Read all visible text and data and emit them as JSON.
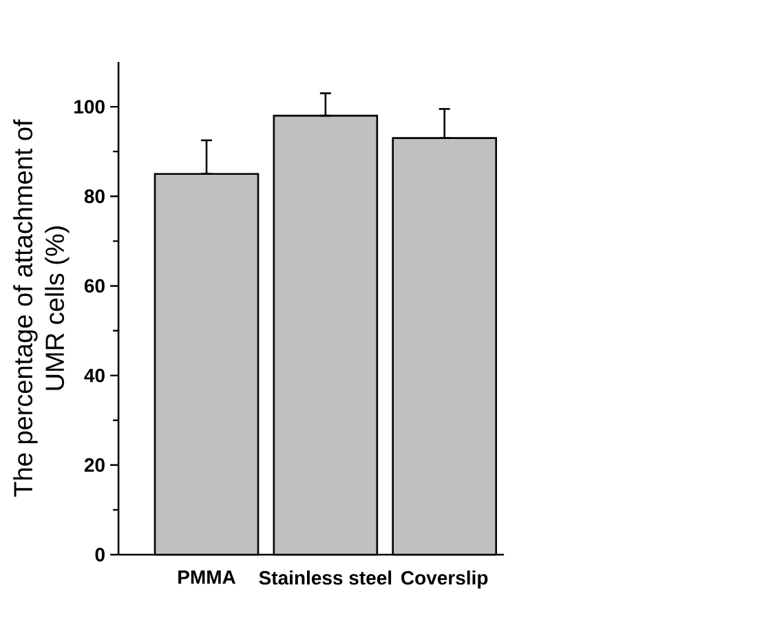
{
  "chart_data": {
    "type": "bar",
    "ylabel": "The percentage of attachment of UMR cells (%)",
    "categories": [
      "PMMA",
      "Stainless steel",
      "Coverslip"
    ],
    "values": [
      85,
      98,
      93
    ],
    "color": "#c0c0c0",
    "errors": [
      [
        85,
        92.5
      ],
      [
        98,
        103
      ],
      [
        93,
        99.5
      ]
    ],
    "ylim": [
      0,
      110
    ],
    "yticks": [
      0,
      20,
      40,
      60,
      80,
      100
    ],
    "grid": false
  }
}
